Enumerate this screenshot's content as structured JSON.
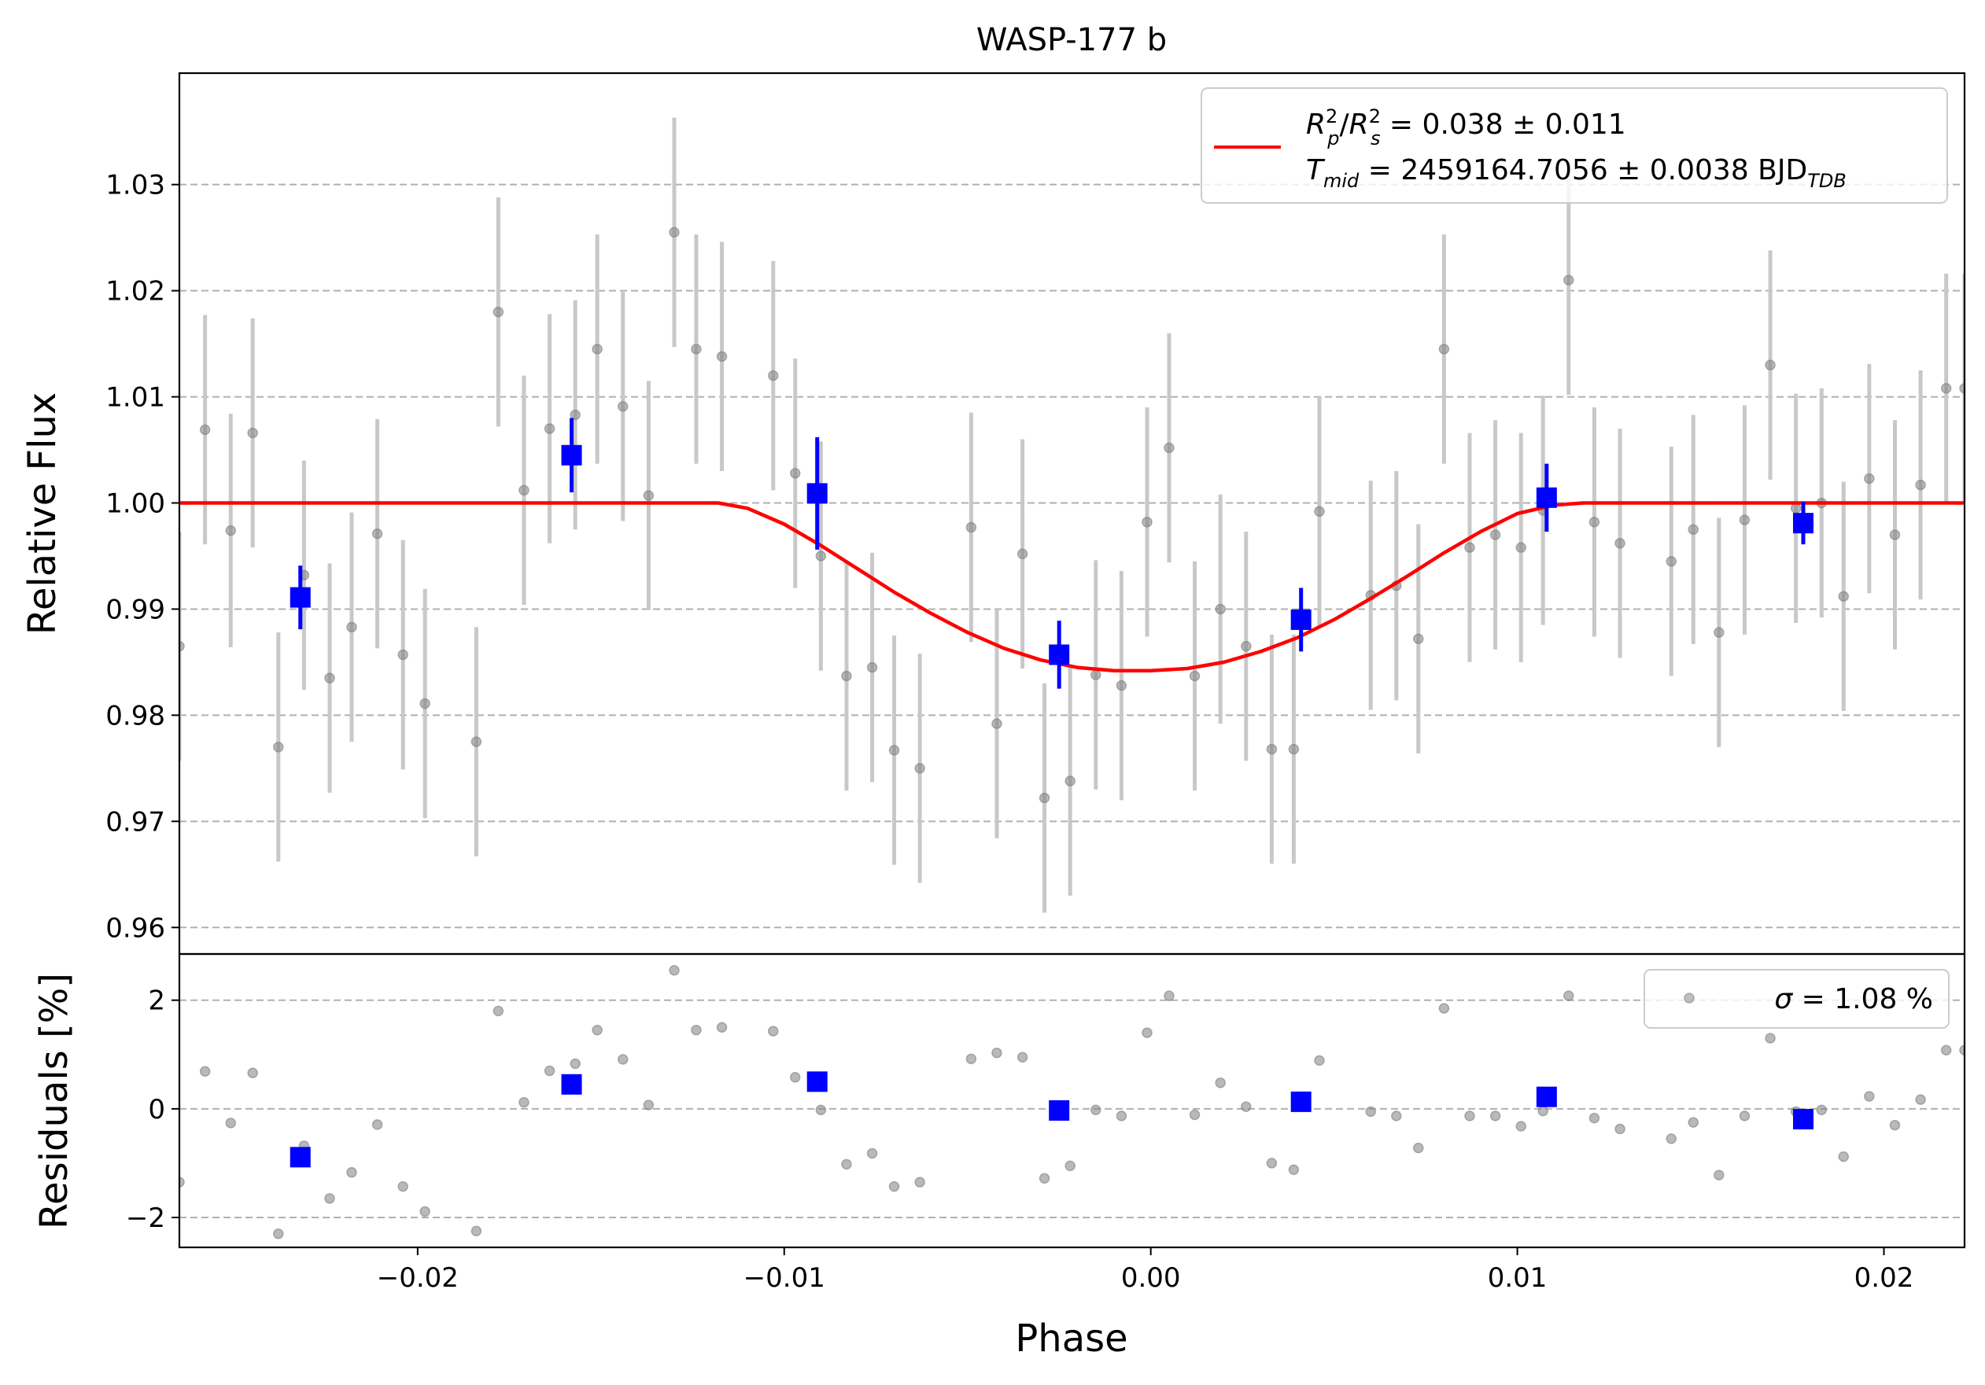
{
  "title": "WASP-177 b",
  "colors": {
    "model": "#ff0000",
    "binned": "#0000ff",
    "raw_marker": "#808080",
    "raw_errorbar": "#c8c8c8",
    "grid": "#b0b0b0"
  },
  "legend_top": {
    "placement": "upper-right",
    "line1_prefix": "R",
    "line1_rest": " = 0.038 ± 0.011",
    "line2_prefix": "T",
    "line2_sub": "mid",
    "line2_rest": " = 2459164.7056 ± 0.0038 BJD",
    "line2_suffix_sub": "TDB"
  },
  "legend_bottom": {
    "placement": "upper-right",
    "sigma_symbol": "σ",
    "text": " = 1.08 %"
  },
  "chart_data": [
    {
      "type": "scatter",
      "panel": "light-curve",
      "title": "WASP-177 b",
      "xlabel": "",
      "ylabel": "Relative Flux",
      "xlim": [
        -0.0265,
        0.0222
      ],
      "ylim": [
        0.9575,
        1.0405
      ],
      "yticks": [
        0.96,
        0.97,
        0.98,
        0.99,
        1.0,
        1.01,
        1.02,
        1.03
      ],
      "ytick_labels": [
        "0.96",
        "0.97",
        "0.98",
        "0.99",
        "1.00",
        "1.01",
        "1.02",
        "1.03"
      ],
      "grid": "horizontal dashed",
      "series": [
        {
          "kind": "raw",
          "x": [
            -0.0265,
            -0.0258,
            -0.0251,
            -0.0245,
            -0.0238,
            -0.0231,
            -0.0224,
            -0.0218,
            -0.0211,
            -0.0204,
            -0.0198,
            -0.0184,
            -0.0178,
            -0.0171,
            -0.0164,
            -0.0157,
            -0.0151,
            -0.0144,
            -0.0137,
            -0.013,
            -0.0124,
            -0.0117,
            -0.0103,
            -0.0097,
            -0.009,
            -0.0083,
            -0.0076,
            -0.007,
            -0.0063,
            -0.0049,
            -0.0042,
            -0.0035,
            -0.0029,
            -0.0022,
            -0.0015,
            -0.0008,
            -0.0001,
            0.0005,
            0.0012,
            0.0019,
            0.0026,
            0.0033,
            0.0039,
            0.0046,
            0.006,
            0.0067,
            0.0073,
            0.008,
            0.0087,
            0.0094,
            0.0101,
            0.0107,
            0.0114,
            0.0121,
            0.0128,
            0.0142,
            0.0148,
            0.0155,
            0.0162,
            0.0169,
            0.0176,
            0.0183,
            0.0189,
            0.0196,
            0.0203,
            0.021,
            0.0217,
            0.0222
          ],
          "y": [
            0.9865,
            1.0069,
            0.9974,
            1.0066,
            0.977,
            0.9932,
            0.9835,
            0.9883,
            0.9971,
            0.9857,
            0.9811,
            0.9775,
            1.018,
            1.0012,
            1.007,
            1.0083,
            1.0145,
            1.0091,
            1.0007,
            1.0255,
            1.0145,
            1.0138,
            1.012,
            1.0028,
            0.995,
            0.9837,
            0.9845,
            0.9767,
            0.975,
            0.9977,
            0.9792,
            0.9952,
            0.9722,
            0.9738,
            0.9838,
            0.9828,
            0.9982,
            1.0052,
            0.9837,
            0.99,
            0.9865,
            0.9768,
            0.9768,
            0.9992,
            0.9913,
            0.9922,
            0.9872,
            1.0145,
            0.9958,
            0.997,
            0.9958,
            0.9993,
            1.021,
            0.9982,
            0.9962,
            0.9945,
            0.9975,
            0.9878,
            0.9984,
            1.013,
            0.9995,
            1.0,
            0.9912,
            1.0023,
            0.997,
            1.0017,
            1.0108,
            1.0108
          ],
          "yerr": [
            0.0108,
            0.0108,
            0.011,
            0.0108,
            0.0108,
            0.0108,
            0.0108,
            0.0108,
            0.0108,
            0.0108,
            0.0108,
            0.0108,
            0.0108,
            0.0108,
            0.0108,
            0.0108,
            0.0108,
            0.0108,
            0.0108,
            0.0108,
            0.0108,
            0.0108,
            0.0108,
            0.0108,
            0.0108,
            0.0108,
            0.0108,
            0.0108,
            0.0108,
            0.0108,
            0.0108,
            0.0108,
            0.0108,
            0.0108,
            0.0108,
            0.0108,
            0.0108,
            0.0108,
            0.0108,
            0.0108,
            0.0108,
            0.0108,
            0.0108,
            0.0108,
            0.0108,
            0.0108,
            0.0108,
            0.0108,
            0.0108,
            0.0108,
            0.0108,
            0.0108,
            0.0108,
            0.0108,
            0.0108,
            0.0108,
            0.0108,
            0.0108,
            0.0108,
            0.0108,
            0.0108,
            0.0108,
            0.0108,
            0.0108,
            0.0108,
            0.0108,
            0.0108,
            0.0108
          ]
        },
        {
          "kind": "binned",
          "x": [
            -0.0232,
            -0.0158,
            -0.0091,
            -0.0025,
            0.0041,
            0.0108,
            0.0178
          ],
          "y": [
            0.9911,
            1.0045,
            1.0009,
            0.9857,
            0.989,
            1.0005,
            0.9981
          ],
          "yerr": [
            0.003,
            0.0035,
            0.0053,
            0.0032,
            0.003,
            0.0032,
            0.002
          ]
        },
        {
          "kind": "model",
          "x": [
            -0.0265,
            -0.0118,
            -0.011,
            -0.01,
            -0.009,
            -0.008,
            -0.007,
            -0.006,
            -0.005,
            -0.004,
            -0.003,
            -0.002,
            -0.001,
            0.0,
            0.001,
            0.002,
            0.003,
            0.004,
            0.005,
            0.006,
            0.007,
            0.008,
            0.009,
            0.01,
            0.011,
            0.0118,
            0.0222
          ],
          "y": [
            1.0,
            1.0,
            0.9995,
            0.998,
            0.996,
            0.9938,
            0.9916,
            0.9896,
            0.9878,
            0.9863,
            0.9852,
            0.9845,
            0.9842,
            0.9842,
            0.9844,
            0.985,
            0.986,
            0.9873,
            0.989,
            0.991,
            0.9931,
            0.9953,
            0.9973,
            0.999,
            0.9998,
            1.0,
            1.0
          ]
        }
      ]
    },
    {
      "type": "scatter",
      "panel": "residuals",
      "xlabel": "Phase",
      "ylabel": "Residuals [%]",
      "xlim": [
        -0.0265,
        0.0222
      ],
      "ylim": [
        -2.55,
        2.85
      ],
      "xticks": [
        -0.02,
        -0.01,
        0.0,
        0.01,
        0.02
      ],
      "xtick_labels": [
        "−0.02",
        "−0.01",
        "0.00",
        "0.01",
        "0.02"
      ],
      "yticks": [
        -2,
        0,
        2
      ],
      "ytick_labels": [
        "−2",
        "0",
        "2"
      ],
      "grid": "horizontal dashed",
      "series": [
        {
          "kind": "raw",
          "x": [
            -0.0265,
            -0.0258,
            -0.0251,
            -0.0245,
            -0.0238,
            -0.0231,
            -0.0224,
            -0.0218,
            -0.0211,
            -0.0204,
            -0.0198,
            -0.0184,
            -0.0178,
            -0.0171,
            -0.0164,
            -0.0157,
            -0.0151,
            -0.0144,
            -0.0137,
            -0.013,
            -0.0124,
            -0.0117,
            -0.0103,
            -0.0097,
            -0.009,
            -0.0083,
            -0.0076,
            -0.007,
            -0.0063,
            -0.0049,
            -0.0042,
            -0.0035,
            -0.0029,
            -0.0022,
            -0.0015,
            -0.0008,
            -0.0001,
            0.0005,
            0.0012,
            0.0019,
            0.0026,
            0.0033,
            0.0039,
            0.0046,
            0.006,
            0.0067,
            0.0073,
            0.008,
            0.0087,
            0.0094,
            0.0101,
            0.0107,
            0.0114,
            0.0121,
            0.0128,
            0.0142,
            0.0148,
            0.0155,
            0.0162,
            0.0169,
            0.0176,
            0.0183,
            0.0189,
            0.0196,
            0.0203,
            0.021,
            0.0217,
            0.0222
          ],
          "y": [
            -1.35,
            0.69,
            -0.26,
            0.66,
            -2.3,
            -0.68,
            -1.65,
            -1.17,
            -0.29,
            -1.43,
            -1.89,
            -2.25,
            1.8,
            0.12,
            0.7,
            0.83,
            1.45,
            0.91,
            0.07,
            2.55,
            1.45,
            1.5,
            1.43,
            0.58,
            -0.02,
            -1.02,
            -0.82,
            -1.43,
            -1.35,
            0.92,
            1.03,
            0.95,
            -1.28,
            -1.05,
            -0.02,
            -0.13,
            1.4,
            2.08,
            -0.11,
            0.48,
            0.04,
            -1.0,
            -1.12,
            0.89,
            -0.05,
            -0.13,
            -0.72,
            1.85,
            -0.13,
            -0.13,
            -0.32,
            -0.04,
            2.08,
            -0.17,
            -0.37,
            -0.55,
            -0.25,
            -1.22,
            -0.13,
            1.3,
            -0.05,
            -0.02,
            -0.88,
            0.23,
            -0.3,
            0.17,
            1.08,
            1.08
          ]
        },
        {
          "kind": "binned",
          "x": [
            -0.0232,
            -0.0158,
            -0.0091,
            -0.0025,
            0.0041,
            0.0108,
            0.0178
          ],
          "y": [
            -0.89,
            0.45,
            0.5,
            -0.03,
            0.13,
            0.22,
            -0.19
          ]
        }
      ]
    }
  ]
}
